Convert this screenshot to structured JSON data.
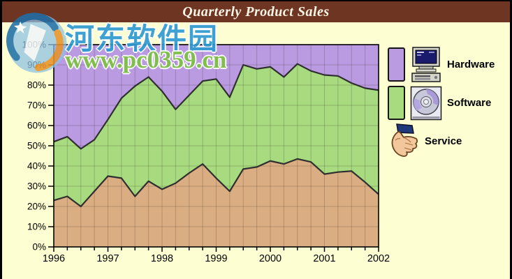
{
  "window": {
    "title": "Quarterly Product Sales"
  },
  "watermark": {
    "site_name": "河东软件园",
    "site_url": "www.pc0359.cn"
  },
  "legend": [
    {
      "label": "Hardware",
      "color": "#ba9be2",
      "icon": "computer-icon"
    },
    {
      "label": "Software",
      "color": "#a8db80",
      "icon": "cd-icon"
    },
    {
      "label": "Service",
      "color": "#dbad82",
      "icon": "hand-icon"
    }
  ],
  "chart_data": {
    "type": "area",
    "stacked": true,
    "percent_stacked": true,
    "title": "Quarterly Product Sales",
    "xlabel": "",
    "ylabel": "",
    "ylim": [
      0,
      100
    ],
    "grid": true,
    "legend_position": "right",
    "x_tick_labels": [
      "1996",
      "1997",
      "1998",
      "1999",
      "2000",
      "2001",
      "2002"
    ],
    "y_tick_labels": [
      "100%",
      "90%",
      "80%",
      "70%",
      "60%",
      "50%",
      "40%",
      "30%",
      "20%",
      "10%",
      "0%"
    ],
    "x_quarters": [
      "1996 Q1",
      "1996 Q2",
      "1996 Q3",
      "1996 Q4",
      "1997 Q1",
      "1997 Q2",
      "1997 Q3",
      "1997 Q4",
      "1998 Q1",
      "1998 Q2",
      "1998 Q3",
      "1998 Q4",
      "1999 Q1",
      "1999 Q2",
      "1999 Q3",
      "1999 Q4",
      "2000 Q1",
      "2000 Q2",
      "2000 Q3",
      "2000 Q4",
      "2001 Q1",
      "2001 Q2",
      "2001 Q3",
      "2001 Q4",
      "2002 Q1"
    ],
    "series": [
      {
        "name": "Service",
        "color": "#dbad82",
        "values": [
          23,
          25,
          20,
          27.5,
          35,
          34,
          25,
          32.5,
          28.5,
          31.5,
          36.5,
          41,
          34,
          27.5,
          38.5,
          39.5,
          42.5,
          41,
          43.5,
          42,
          36,
          37,
          37.5,
          32,
          26
        ]
      },
      {
        "name": "Software",
        "color": "#a8db80",
        "values": [
          29,
          29.5,
          28.5,
          25.5,
          28,
          39.5,
          54.5,
          51.5,
          48.5,
          36.5,
          38.5,
          41,
          49,
          46.5,
          51.5,
          48.5,
          46.5,
          43,
          47,
          45,
          49,
          47.5,
          43.5,
          46.5,
          51.5
        ]
      },
      {
        "name": "Hardware",
        "color": "#ba9be2",
        "values": [
          48,
          45.5,
          51.5,
          47,
          37,
          26.5,
          20.5,
          16,
          23,
          32,
          25,
          18,
          17,
          26,
          10,
          12,
          11,
          16,
          9.5,
          13,
          15,
          15.5,
          19,
          21.5,
          22.5
        ]
      }
    ]
  }
}
